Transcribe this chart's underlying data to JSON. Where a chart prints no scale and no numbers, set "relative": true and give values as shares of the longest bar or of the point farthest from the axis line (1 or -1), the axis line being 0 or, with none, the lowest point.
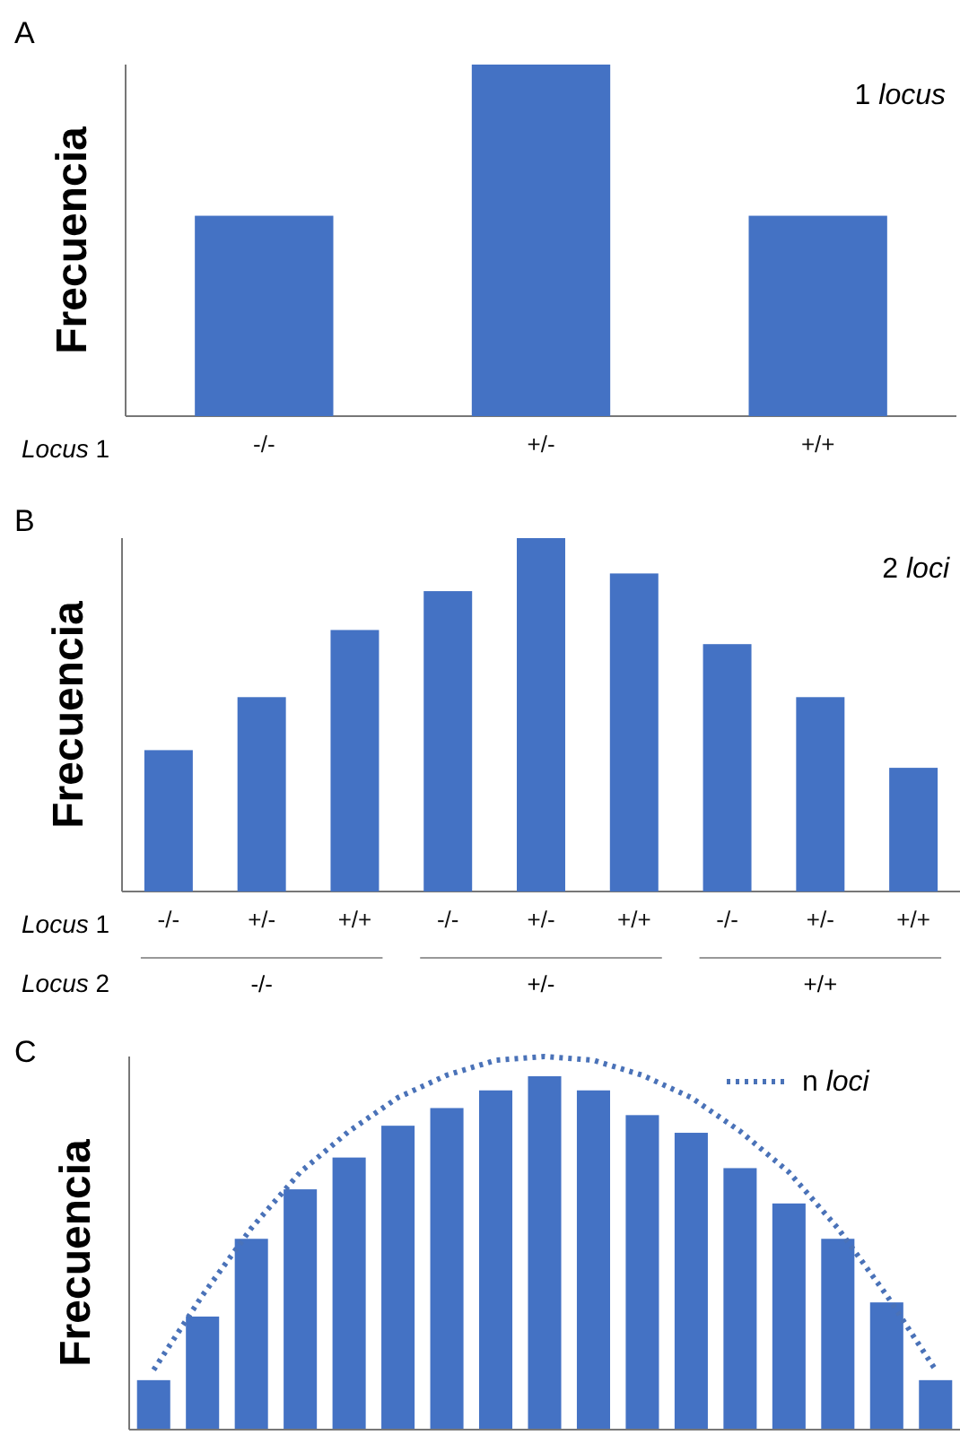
{
  "chart_data": [
    {
      "type": "bar",
      "title": "A",
      "ylabel": "Frecuencia",
      "xlabel": "Locus 1",
      "annotations": [
        "1 locus"
      ],
      "relative": true,
      "categories": [
        "-/-",
        "+/-",
        "+/+"
      ],
      "values": [
        0.57,
        1,
        0.57
      ],
      "color": "#4472c4"
    },
    {
      "type": "bar",
      "title": "B",
      "ylabel": "Frecuencia",
      "xlabel": "Locus 1",
      "annotations": [
        "2 loci",
        "Locus 2",
        "-/-",
        "+/-",
        "+/+"
      ],
      "relative": true,
      "categories": [
        "-/-",
        "+/-",
        "+/+",
        "-/-",
        "+/-",
        "+/+",
        "-/-",
        "+/-",
        "+/+"
      ],
      "values": [
        0.4,
        0.55,
        0.74,
        0.85,
        1,
        0.9,
        0.7,
        0.55,
        0.35
      ],
      "color": "#4472c4"
    },
    {
      "type": "bar",
      "title": "C",
      "ylabel": "Frecuencia",
      "relative": true,
      "categories": [
        null,
        null,
        null,
        null,
        null,
        null,
        null,
        null,
        null,
        null,
        null,
        null,
        null,
        null,
        null,
        null,
        null
      ],
      "color": "#4472c4",
      "values": [
        0.14,
        0.32,
        0.54,
        0.68,
        0.77,
        0.86,
        0.91,
        0.96,
        1,
        0.96,
        0.89,
        0.84,
        0.74,
        0.64,
        0.54,
        0.36,
        0.14
      ]
    },
    {
      "type": "line",
      "relative": true,
      "legend": "top right",
      "categories": [
        null,
        null,
        null,
        null,
        null,
        null,
        null,
        null,
        null,
        null,
        null,
        null,
        null,
        null,
        null,
        null,
        null
      ],
      "series": [
        {
          "name": "n loci",
          "color": "#4a72b8",
          "line_style": "dotted",
          "values": [
            0.16,
            0.36,
            0.54,
            0.69,
            0.8,
            0.89,
            0.95,
            0.99,
            1,
            0.99,
            0.95,
            0.89,
            0.8,
            0.69,
            0.54,
            0.36,
            0.16
          ]
        }
      ]
    }
  ]
}
